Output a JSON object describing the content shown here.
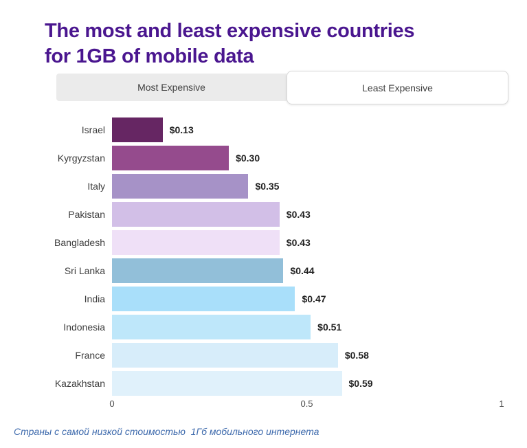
{
  "title": {
    "text": "The most and least expensive countries for 1GB of mobile data",
    "color": "#4A168F"
  },
  "tabs": [
    {
      "label": "Most Expensive",
      "active": false
    },
    {
      "label": "Least Expensive",
      "active": true
    }
  ],
  "chart_data": {
    "type": "bar",
    "orientation": "horizontal",
    "categories": [
      "Israel",
      "Kyrgyzstan",
      "Italy",
      "Pakistan",
      "Bangladesh",
      "Sri Lanka",
      "India",
      "Indonesia",
      "France",
      "Kazakhstan"
    ],
    "values": [
      0.13,
      0.3,
      0.35,
      0.43,
      0.43,
      0.44,
      0.47,
      0.51,
      0.58,
      0.59
    ],
    "value_labels": [
      "$0.13",
      "$0.30",
      "$0.35",
      "$0.43",
      "$0.43",
      "$0.44",
      "$0.47",
      "$0.51",
      "$0.58",
      "$0.59"
    ],
    "bar_colors": [
      "#662663",
      "#954B8D",
      "#A692C7",
      "#D2BFE7",
      "#EFE0F7",
      "#92BFD9",
      "#A9DFFA",
      "#BEE7FA",
      "#D7EDFA",
      "#E0F1FB"
    ],
    "xlim": [
      0,
      1
    ],
    "x_ticks": [
      {
        "value": 0,
        "label": "0"
      },
      {
        "value": 0.5,
        "label": "0.5"
      },
      {
        "value": 1,
        "label": "1"
      }
    ],
    "grid": false,
    "legend": false,
    "unit": "USD per 1GB"
  },
  "caption": {
    "text": "Страны с самой низкой стоимостью  1Гб мобильного интернета",
    "color": "#3F6BAD"
  }
}
